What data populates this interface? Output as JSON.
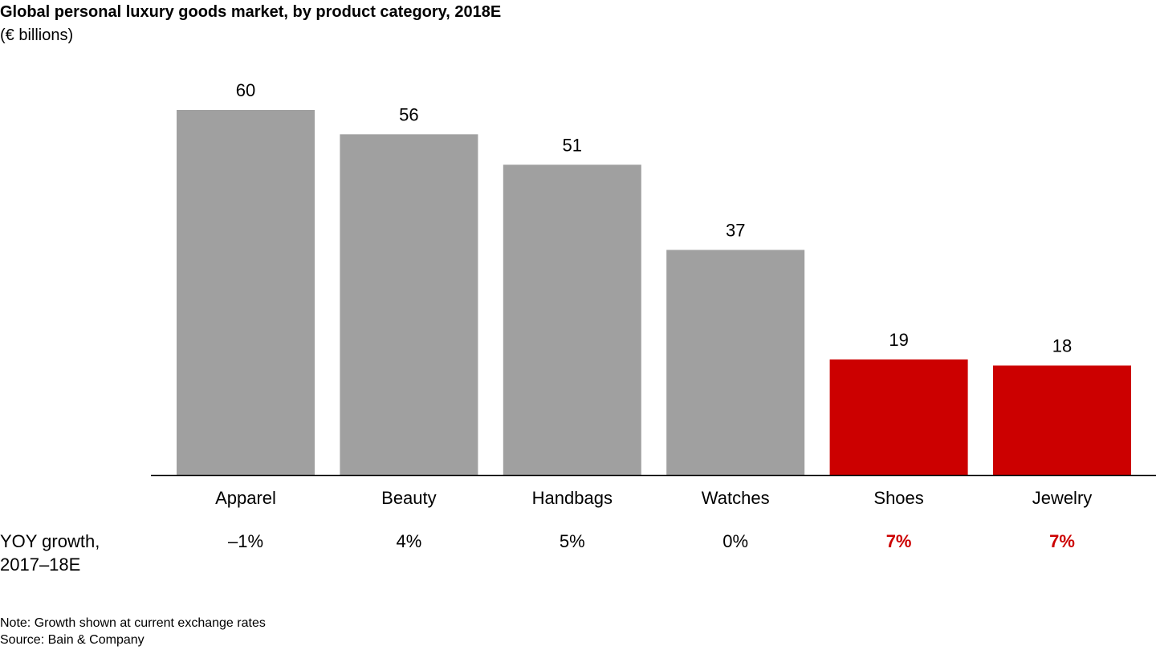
{
  "chart_data": {
    "type": "bar",
    "title": "Global personal luxury goods market, by product category, 2018E",
    "subtitle": "(€ billions)",
    "categories": [
      "Apparel",
      "Beauty",
      "Handbags",
      "Watches",
      "Shoes",
      "Jewelry"
    ],
    "values": [
      60,
      56,
      51,
      37,
      19,
      18
    ],
    "data_labels": [
      "60",
      "56",
      "51",
      "37",
      "19",
      "18"
    ],
    "growth_label": [
      "YOY growth,",
      "2017–18E"
    ],
    "growth": [
      "–1%",
      "4%",
      "5%",
      "0%",
      "7%",
      "7%"
    ],
    "highlight": [
      false,
      false,
      false,
      false,
      true,
      true
    ],
    "colors": {
      "bar": "#a0a0a0",
      "highlight": "#cc0000",
      "axis": "#000000",
      "text": "#000000",
      "highlight_text": "#cc0000"
    },
    "ylim": [
      0,
      60
    ],
    "grid": false,
    "legend": "none"
  },
  "notes": {
    "note": "Note: Growth shown at current exchange rates",
    "source": "Source: Bain & Company"
  }
}
